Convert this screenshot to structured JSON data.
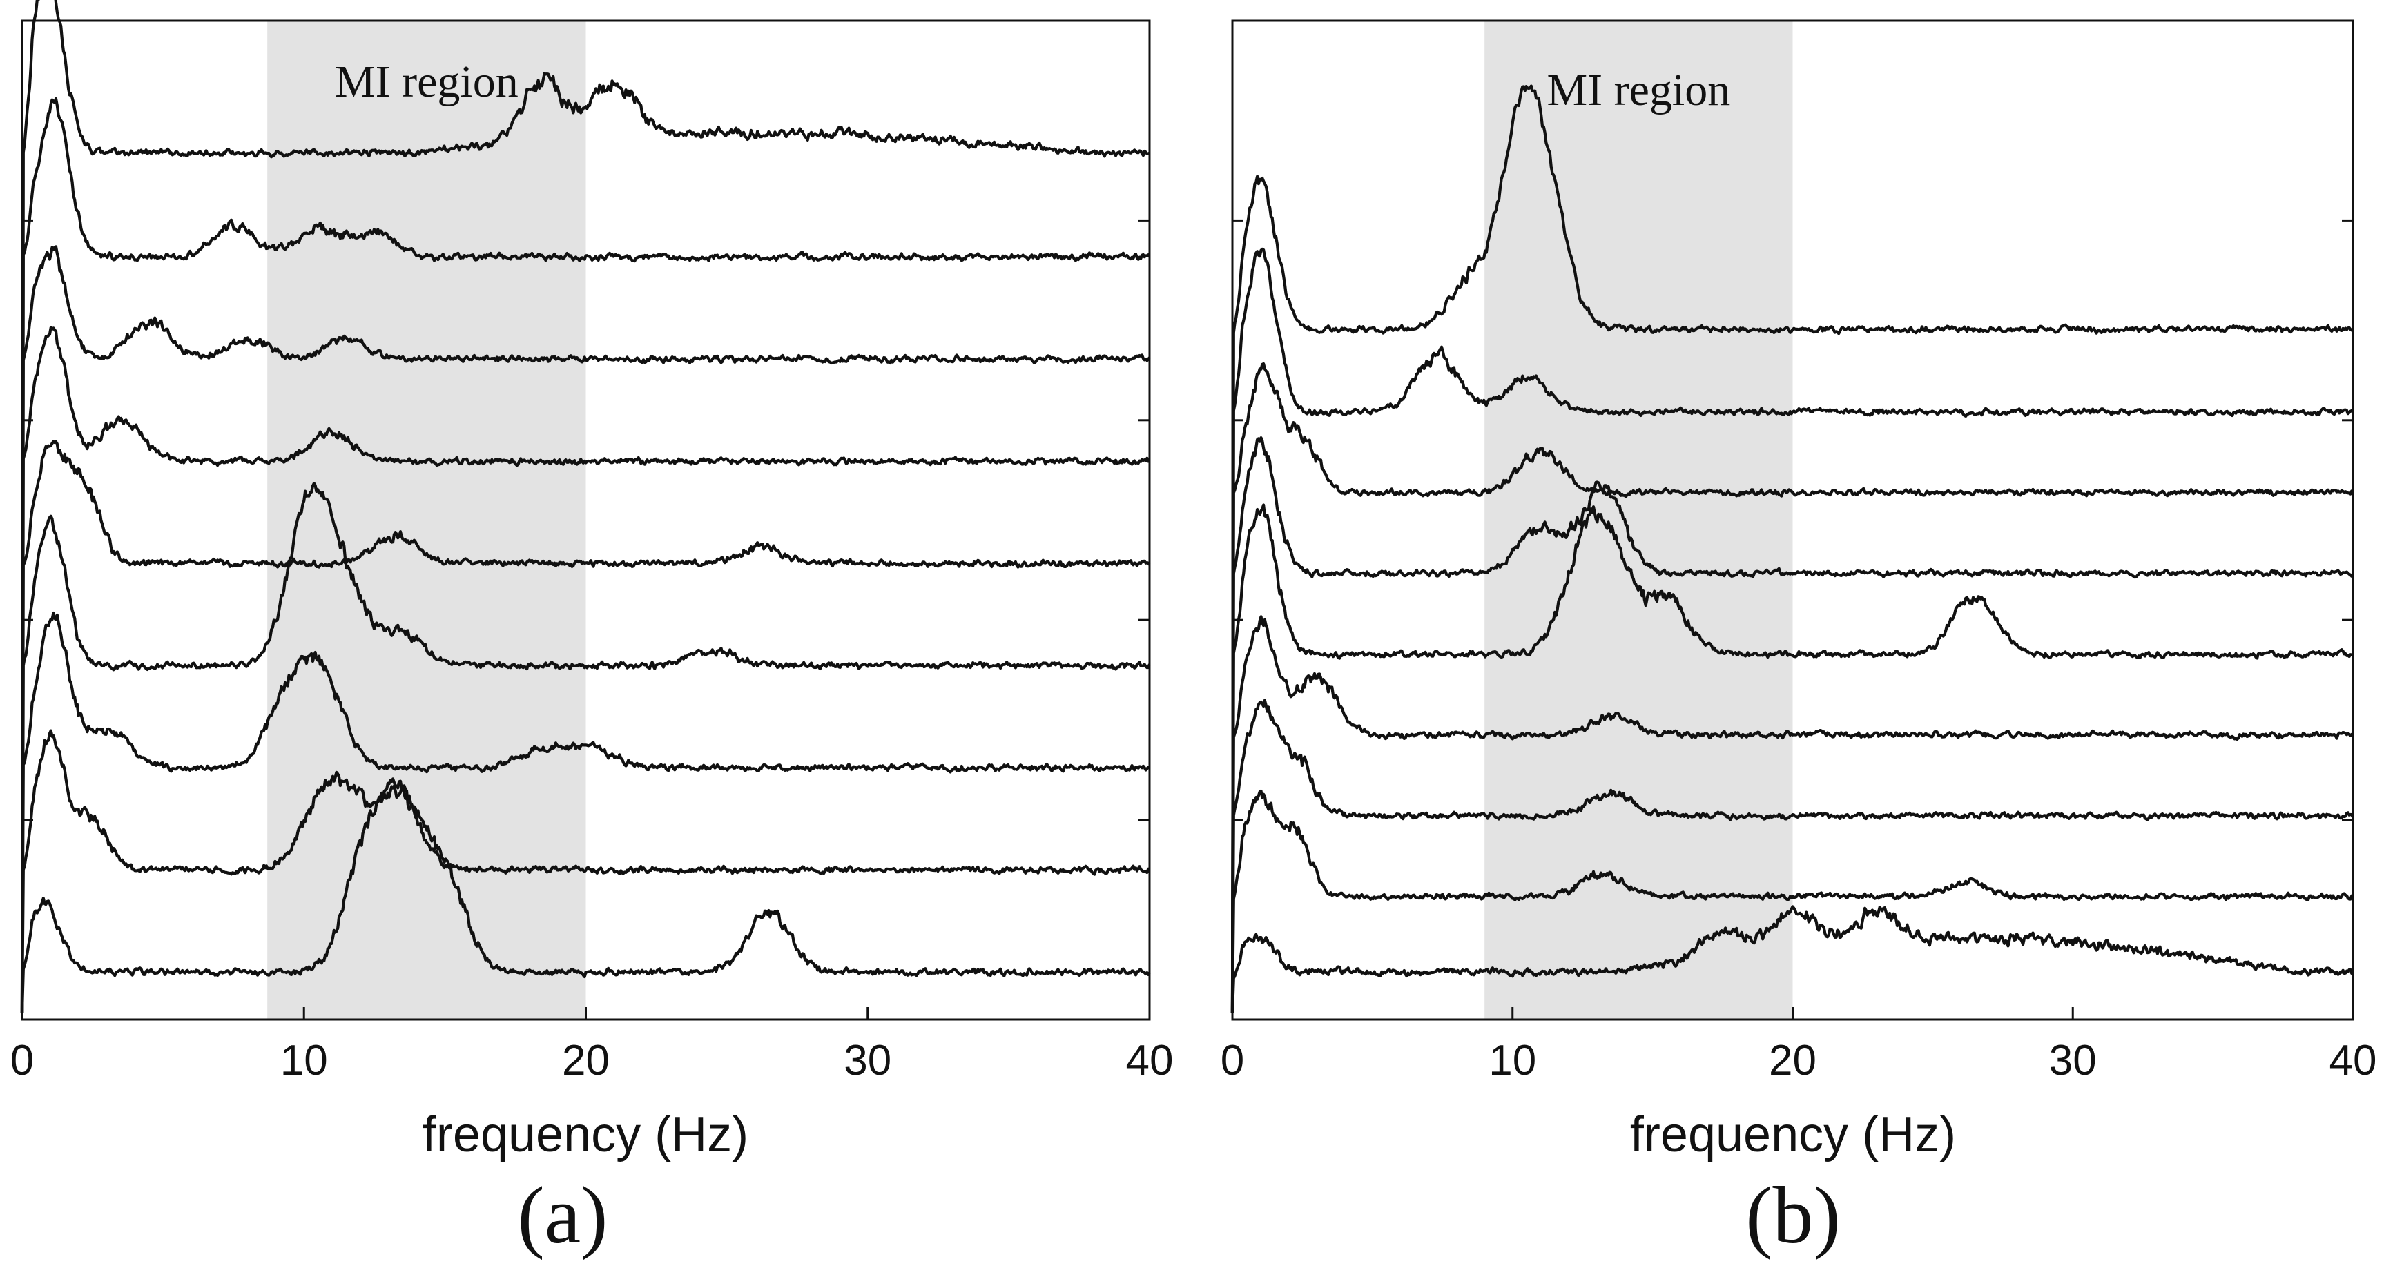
{
  "chart_data": [
    {
      "type": "line",
      "panel_label": "(a)",
      "xlabel": "frequency (Hz)",
      "ylabel": "",
      "xlim": [
        0,
        40
      ],
      "xticks": [
        0,
        10,
        20,
        30,
        40
      ],
      "grid": false,
      "shaded_region": {
        "label": "MI region",
        "x_start": 8.7,
        "x_end": 20
      },
      "series": [
        {
          "peaks": [
            [
              0.9,
              0.9
            ],
            [
              18.5,
              0.3
            ],
            [
              21,
              0.28
            ]
          ],
          "tail_rise": 0.1,
          "tail_level": 0.03,
          "base": 0
        },
        {
          "peaks": [
            [
              1.1,
              0.75
            ],
            [
              7.5,
              0.15
            ],
            [
              10.5,
              0.14
            ],
            [
              12.5,
              0.12
            ]
          ],
          "tail_rise": 0,
          "tail_level": 0.02,
          "base": 0
        },
        {
          "peaks": [
            [
              1.0,
              0.55
            ],
            [
              4.5,
              0.18
            ],
            [
              8,
              0.1
            ],
            [
              11.5,
              0.1
            ]
          ],
          "tail_rise": 0,
          "tail_level": 0.02,
          "base": 0
        },
        {
          "peaks": [
            [
              1.0,
              0.65
            ],
            [
              3.5,
              0.2
            ],
            [
              11,
              0.14
            ]
          ],
          "tail_rise": 0,
          "tail_level": 0.02,
          "base": 0
        },
        {
          "peaks": [
            [
              1.0,
              0.55
            ],
            [
              2.2,
              0.38
            ],
            [
              13.2,
              0.14
            ],
            [
              26.2,
              0.08
            ]
          ],
          "tail_rise": 0,
          "tail_level": 0.02,
          "base": 0
        },
        {
          "peaks": [
            [
              1.0,
              0.7
            ],
            [
              10.2,
              0.8
            ],
            [
              11.5,
              0.35
            ],
            [
              13.5,
              0.16
            ],
            [
              24.5,
              0.08
            ]
          ],
          "tail_rise": 0,
          "tail_level": 0.02,
          "base": 0
        },
        {
          "peaks": [
            [
              1.1,
              0.75
            ],
            [
              3,
              0.2
            ],
            [
              9.5,
              0.35
            ],
            [
              10.7,
              0.4
            ],
            [
              18.5,
              0.1
            ],
            [
              20.3,
              0.1
            ]
          ],
          "tail_rise": 0,
          "tail_level": 0.02,
          "base": 0
        },
        {
          "peaks": [
            [
              1.0,
              0.65
            ],
            [
              2.5,
              0.25
            ],
            [
              10.5,
              0.25
            ],
            [
              11.5,
              0.3
            ],
            [
              13.3,
              0.38
            ]
          ],
          "tail_rise": 0,
          "tail_level": 0.02,
          "base": 0
        },
        {
          "peaks": [
            [
              0.8,
              0.35
            ],
            [
              12.2,
              0.55
            ],
            [
              13.5,
              0.75
            ],
            [
              15,
              0.45
            ],
            [
              26.5,
              0.3
            ]
          ],
          "tail_rise": 0,
          "tail_level": 0.02,
          "base": 0
        }
      ]
    },
    {
      "type": "line",
      "panel_label": "(b)",
      "xlabel": "frequency (Hz)",
      "ylabel": "",
      "xlim": [
        0,
        40
      ],
      "xticks": [
        0,
        10,
        20,
        30,
        40
      ],
      "grid": false,
      "shaded_region": {
        "label": "MI region",
        "x_start": 9,
        "x_end": 20
      },
      "series": [
        {
          "peaks": [
            [
              1.0,
              0.8
            ],
            [
              10.3,
              1.0
            ],
            [
              11.3,
              0.55
            ],
            [
              8.5,
              0.25
            ]
          ],
          "tail_rise": 0,
          "tail_level": 0.03,
          "base": 0
        },
        {
          "peaks": [
            [
              1.0,
              0.85
            ],
            [
              7.3,
              0.3
            ],
            [
              10.5,
              0.18
            ]
          ],
          "tail_rise": 0,
          "tail_level": 0.02,
          "base": 0
        },
        {
          "peaks": [
            [
              1.1,
              0.65
            ],
            [
              2.5,
              0.3
            ],
            [
              11,
              0.22
            ]
          ],
          "tail_rise": 0,
          "tail_level": 0.02,
          "base": 0
        },
        {
          "peaks": [
            [
              1.0,
              0.7
            ],
            [
              11,
              0.25
            ],
            [
              13.2,
              0.45
            ]
          ],
          "tail_rise": 0,
          "tail_level": 0.02,
          "base": 0
        },
        {
          "peaks": [
            [
              1.0,
              0.8
            ],
            [
              12.5,
              0.45
            ],
            [
              13.5,
              0.5
            ],
            [
              15.5,
              0.3
            ],
            [
              26.5,
              0.32
            ]
          ],
          "tail_rise": 0,
          "tail_level": 0.02,
          "base": 0
        },
        {
          "peaks": [
            [
              1.0,
              0.6
            ],
            [
              3,
              0.3
            ],
            [
              13.5,
              0.1
            ]
          ],
          "tail_rise": 0,
          "tail_level": 0.02,
          "base": 0
        },
        {
          "peaks": [
            [
              1.0,
              0.6
            ],
            [
              2.3,
              0.3
            ],
            [
              13.5,
              0.12
            ]
          ],
          "tail_rise": 0,
          "tail_level": 0.02,
          "base": 0
        },
        {
          "peaks": [
            [
              0.9,
              0.5
            ],
            [
              2.2,
              0.35
            ],
            [
              13.2,
              0.12
            ],
            [
              26.2,
              0.08
            ]
          ],
          "tail_rise": 0,
          "tail_level": 0.02,
          "base": 0
        },
        {
          "peaks": [
            [
              0.9,
              0.2
            ],
            [
              17.5,
              0.14
            ],
            [
              20,
              0.2
            ],
            [
              23,
              0.16
            ]
          ],
          "tail_rise": 0.18,
          "tail_level": 0.05,
          "base": 0
        }
      ]
    }
  ]
}
